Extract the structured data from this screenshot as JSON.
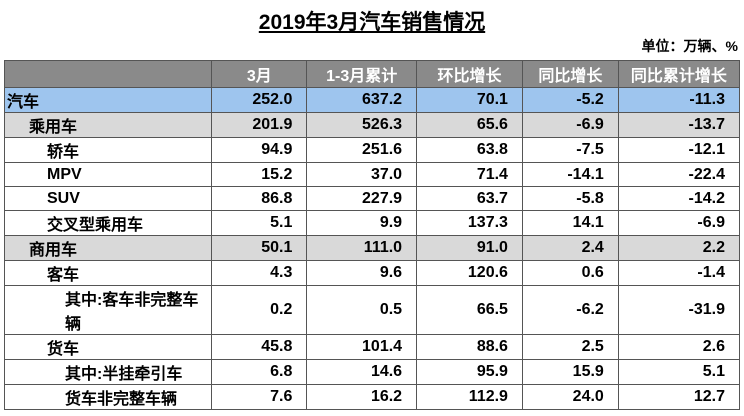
{
  "header": {
    "title": "2019年3月汽车销售情况",
    "unit": "单位：万辆、%"
  },
  "table": {
    "columns": [
      "",
      "3月",
      "1-3月累计",
      "环比增长",
      "同比增长",
      "同比累计增长"
    ],
    "rows": [
      [
        "汽车",
        "252.0",
        "637.2",
        "70.1",
        "-5.2",
        "-11.3"
      ],
      [
        "乘用车",
        "201.9",
        "526.3",
        "65.6",
        "-6.9",
        "-13.7"
      ],
      [
        "轿车",
        "94.9",
        "251.6",
        "63.8",
        "-7.5",
        "-12.1"
      ],
      [
        "MPV",
        "15.2",
        "37.0",
        "71.4",
        "-14.1",
        "-22.4"
      ],
      [
        "SUV",
        "86.8",
        "227.9",
        "63.7",
        "-5.8",
        "-14.2"
      ],
      [
        "交叉型乘用车",
        "5.1",
        "9.9",
        "137.3",
        "14.1",
        "-6.9"
      ],
      [
        "商用车",
        "50.1",
        "111.0",
        "91.0",
        "2.4",
        "2.2"
      ],
      [
        "客车",
        "4.3",
        "9.6",
        "120.6",
        "0.6",
        "-1.4"
      ],
      [
        "其中:客车非完整车辆",
        "0.2",
        "0.5",
        "66.5",
        "-6.2",
        "-31.9"
      ],
      [
        "货车",
        "45.8",
        "101.4",
        "88.6",
        "2.5",
        "2.6"
      ],
      [
        "其中:半挂牵引车",
        "6.8",
        "14.6",
        "95.9",
        "15.9",
        "5.1"
      ],
      [
        "货车非完整车辆",
        "7.6",
        "16.2",
        "112.9",
        "24.0",
        "12.7"
      ]
    ]
  }
}
